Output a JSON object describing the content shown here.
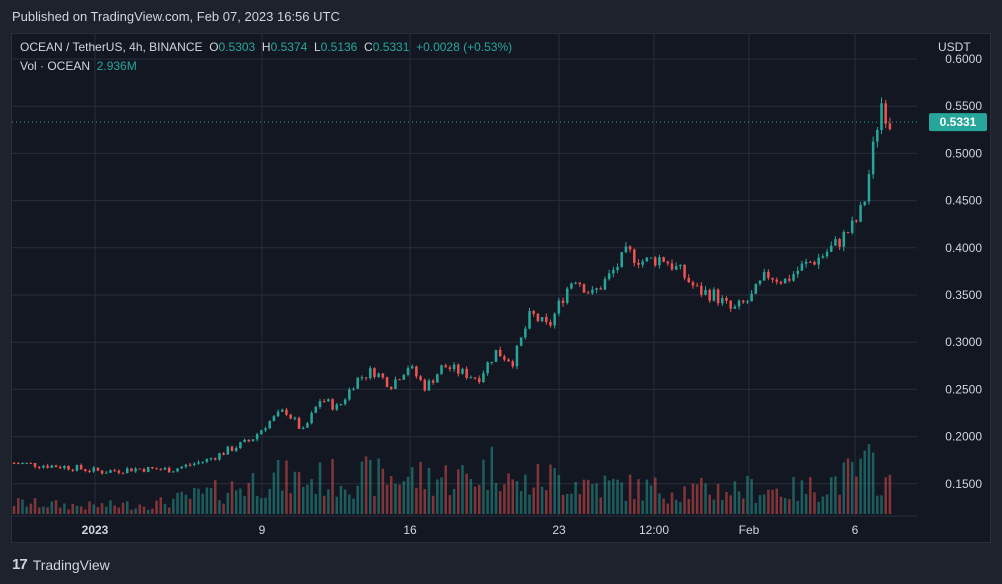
{
  "publish_text": "Published on TradingView.com, Feb 07, 2023 16:56 UTC",
  "legend": {
    "symbol": "OCEAN / TetherUS, 4h, BINANCE",
    "o_label": "O",
    "o": "0.5303",
    "h_label": "H",
    "h": "0.5374",
    "l_label": "L",
    "l": "0.5136",
    "c_label": "C",
    "c": "0.5331",
    "change": "+0.0028 (+0.53%)"
  },
  "volume_legend": {
    "label": "Vol · OCEAN",
    "value": "2.936M"
  },
  "footer": {
    "brand": "TradingView",
    "logo_text": "17"
  },
  "colors": {
    "up": "#26a69a",
    "down": "#ef5350",
    "background": "#131722",
    "grid": "#2a2e39",
    "text": "#d1d4dc"
  },
  "chart_data": {
    "type": "candlestick",
    "y_unit": "USDT",
    "y_ticks": [
      "0.6000",
      "0.5500",
      "0.5000",
      "0.4500",
      "0.4000",
      "0.3500",
      "0.3000",
      "0.2500",
      "0.2000",
      "0.1500"
    ],
    "ylim": [
      0.12,
      0.62
    ],
    "x_ticks": [
      "2023",
      "9",
      "16",
      "23",
      "12:00",
      "Feb",
      "6"
    ],
    "last_price": "0.5331",
    "grid": true,
    "price_path": [
      [
        0,
        0.172
      ],
      [
        6,
        0.168
      ],
      [
        10,
        0.163
      ],
      [
        14,
        0.166
      ],
      [
        18,
        0.165
      ],
      [
        22,
        0.175
      ],
      [
        25,
        0.188
      ],
      [
        27,
        0.196
      ],
      [
        29,
        0.215
      ],
      [
        31,
        0.228
      ],
      [
        33,
        0.205
      ],
      [
        35,
        0.24
      ],
      [
        37,
        0.23
      ],
      [
        39,
        0.26
      ],
      [
        41,
        0.27
      ],
      [
        43,
        0.255
      ],
      [
        45,
        0.275
      ],
      [
        47,
        0.252
      ],
      [
        49,
        0.275
      ],
      [
        51,
        0.268
      ],
      [
        53,
        0.262
      ],
      [
        55,
        0.29
      ],
      [
        57,
        0.28
      ],
      [
        59,
        0.33
      ],
      [
        61,
        0.315
      ],
      [
        63,
        0.355
      ],
      [
        64,
        0.37
      ],
      [
        66,
        0.35
      ],
      [
        68,
        0.37
      ],
      [
        70,
        0.395
      ],
      [
        72,
        0.385
      ],
      [
        74,
        0.39
      ],
      [
        76,
        0.375
      ],
      [
        78,
        0.355
      ],
      [
        80,
        0.35
      ],
      [
        82,
        0.333
      ],
      [
        84,
        0.345
      ],
      [
        86,
        0.372
      ],
      [
        88,
        0.365
      ],
      [
        90,
        0.38
      ],
      [
        92,
        0.39
      ],
      [
        94,
        0.405
      ],
      [
        96,
        0.425
      ],
      [
        97,
        0.445
      ],
      [
        98,
        0.5
      ],
      [
        99,
        0.555
      ],
      [
        100,
        0.533
      ]
    ],
    "volume_path": [
      [
        0,
        0.17
      ],
      [
        8,
        0.12
      ],
      [
        16,
        0.15
      ],
      [
        20,
        0.25
      ],
      [
        24,
        0.35
      ],
      [
        29,
        0.55
      ],
      [
        33,
        0.5
      ],
      [
        38,
        0.55
      ],
      [
        45,
        0.55
      ],
      [
        52,
        0.55
      ],
      [
        56,
        0.8
      ],
      [
        57,
        0.4
      ],
      [
        61,
        0.55
      ],
      [
        66,
        0.45
      ],
      [
        72,
        0.38
      ],
      [
        78,
        0.35
      ],
      [
        84,
        0.38
      ],
      [
        90,
        0.35
      ],
      [
        95,
        0.55
      ],
      [
        98,
        0.72
      ],
      [
        100,
        0.4
      ]
    ]
  }
}
